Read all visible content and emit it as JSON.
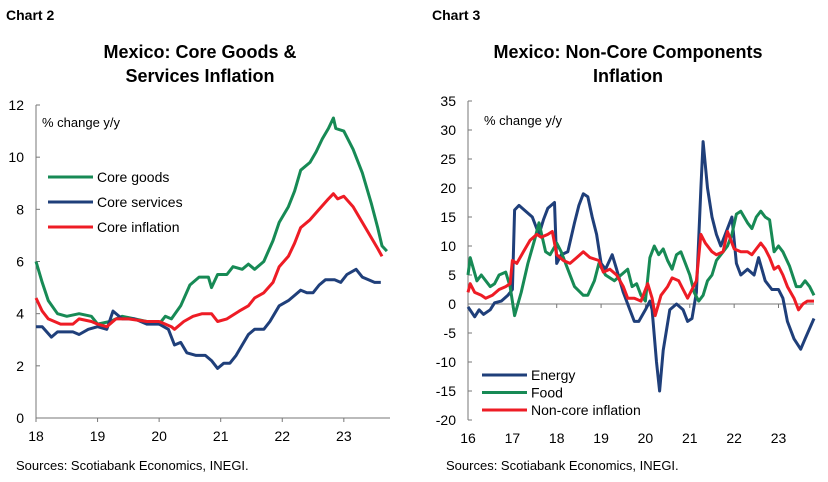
{
  "chart_data": [
    {
      "type": "line",
      "label": "Chart 2",
      "title": [
        "Mexico: Core Goods &",
        "Services Inflation"
      ],
      "unit_label": "% change y/y",
      "source": "Sources: Scotiabank Economics, INEGI.",
      "xlim": [
        18,
        23.75
      ],
      "ylim": [
        0,
        12
      ],
      "xticks": [
        18,
        19,
        20,
        21,
        22,
        23
      ],
      "yticks": [
        0,
        2,
        4,
        6,
        8,
        10,
        12
      ],
      "grid": false,
      "legend_position": "upper-left",
      "series": [
        {
          "name": "Core goods",
          "color": "#178a55",
          "x": [
            18.0,
            18.1,
            18.2,
            18.35,
            18.5,
            18.7,
            18.9,
            19.0,
            19.2,
            19.4,
            19.6,
            19.8,
            20.0,
            20.1,
            20.2,
            20.35,
            20.5,
            20.65,
            20.8,
            20.85,
            20.95,
            21.1,
            21.2,
            21.35,
            21.45,
            21.55,
            21.7,
            21.85,
            21.95,
            22.1,
            22.2,
            22.3,
            22.45,
            22.55,
            22.65,
            22.75,
            22.83,
            22.87,
            23.0,
            23.15,
            23.3,
            23.45,
            23.55,
            23.62,
            23.7
          ],
          "y": [
            6.0,
            5.2,
            4.5,
            4.0,
            3.9,
            4.0,
            3.9,
            3.6,
            3.7,
            3.9,
            3.8,
            3.7,
            3.6,
            3.9,
            3.8,
            4.3,
            5.1,
            5.4,
            5.4,
            5.0,
            5.5,
            5.5,
            5.8,
            5.7,
            5.9,
            5.7,
            6.0,
            6.8,
            7.5,
            8.1,
            8.7,
            9.5,
            9.8,
            10.2,
            10.7,
            11.1,
            11.5,
            11.1,
            11.0,
            10.3,
            9.4,
            8.2,
            7.3,
            6.6,
            6.4
          ]
        },
        {
          "name": "Core services",
          "color": "#1f3f7a",
          "x": [
            18.0,
            18.1,
            18.25,
            18.35,
            18.6,
            18.7,
            18.85,
            19.0,
            19.15,
            19.25,
            19.4,
            19.6,
            19.8,
            20.0,
            20.15,
            20.25,
            20.35,
            20.45,
            20.6,
            20.75,
            20.85,
            20.95,
            21.05,
            21.15,
            21.25,
            21.35,
            21.45,
            21.55,
            21.7,
            21.8,
            21.95,
            22.1,
            22.2,
            22.3,
            22.4,
            22.5,
            22.6,
            22.7,
            22.85,
            22.95,
            23.05,
            23.2,
            23.3,
            23.4,
            23.5,
            23.6
          ],
          "y": [
            3.5,
            3.5,
            3.1,
            3.3,
            3.3,
            3.2,
            3.4,
            3.5,
            3.4,
            4.1,
            3.8,
            3.8,
            3.6,
            3.6,
            3.4,
            2.8,
            2.9,
            2.5,
            2.4,
            2.4,
            2.2,
            1.9,
            2.1,
            2.1,
            2.4,
            2.8,
            3.2,
            3.4,
            3.4,
            3.7,
            4.3,
            4.5,
            4.7,
            4.9,
            4.8,
            4.8,
            5.1,
            5.3,
            5.3,
            5.2,
            5.5,
            5.7,
            5.4,
            5.3,
            5.2,
            5.2
          ]
        },
        {
          "name": "Core inflation",
          "color": "#ee1c25",
          "x": [
            18.0,
            18.1,
            18.2,
            18.4,
            18.6,
            18.7,
            18.9,
            19.0,
            19.15,
            19.3,
            19.5,
            19.8,
            20.0,
            20.1,
            20.2,
            20.25,
            20.4,
            20.55,
            20.7,
            20.85,
            20.95,
            21.1,
            21.3,
            21.45,
            21.55,
            21.7,
            21.85,
            21.95,
            22.1,
            22.2,
            22.3,
            22.45,
            22.6,
            22.75,
            22.83,
            22.9,
            23.0,
            23.15,
            23.3,
            23.45,
            23.55,
            23.62
          ],
          "y": [
            4.6,
            4.1,
            3.8,
            3.6,
            3.6,
            3.8,
            3.7,
            3.6,
            3.5,
            3.8,
            3.8,
            3.7,
            3.7,
            3.6,
            3.5,
            3.4,
            3.7,
            3.9,
            4.0,
            4.0,
            3.7,
            3.8,
            4.1,
            4.3,
            4.6,
            4.8,
            5.2,
            5.8,
            6.2,
            6.7,
            7.3,
            7.6,
            8.0,
            8.4,
            8.6,
            8.4,
            8.5,
            8.1,
            7.5,
            6.9,
            6.5,
            6.2
          ]
        }
      ]
    },
    {
      "type": "line",
      "label": "Chart 3",
      "title": [
        "Mexico: Non-Core Components",
        "Inflation"
      ],
      "unit_label": "% change y/y",
      "source": "Sources: Scotiabank Economics, INEGI.",
      "xlim": [
        16,
        23.8
      ],
      "ylim": [
        -20,
        35
      ],
      "xticks": [
        16,
        17,
        18,
        19,
        20,
        21,
        22,
        23
      ],
      "yticks": [
        -20,
        -15,
        -10,
        -5,
        0,
        5,
        10,
        15,
        20,
        25,
        30,
        35
      ],
      "grid": false,
      "legend_position": "lower-left",
      "series": [
        {
          "name": "Energy",
          "color": "#1f3f7a",
          "x": [
            16.0,
            16.15,
            16.25,
            16.35,
            16.5,
            16.6,
            16.75,
            16.9,
            17.0,
            17.05,
            17.15,
            17.3,
            17.45,
            17.6,
            17.7,
            17.8,
            17.95,
            18.0,
            18.1,
            18.25,
            18.4,
            18.5,
            18.6,
            18.7,
            18.8,
            18.9,
            19.0,
            19.1,
            19.25,
            19.35,
            19.5,
            19.65,
            19.75,
            19.85,
            20.0,
            20.1,
            20.15,
            20.25,
            20.32,
            20.4,
            20.55,
            20.7,
            20.85,
            20.95,
            21.05,
            21.15,
            21.25,
            21.3,
            21.4,
            21.5,
            21.6,
            21.7,
            21.85,
            21.95,
            22.05,
            22.15,
            22.3,
            22.45,
            22.55,
            22.7,
            22.85,
            23.0,
            23.1,
            23.2,
            23.35,
            23.5,
            23.6,
            23.8
          ],
          "y": [
            -0.5,
            -2.2,
            -1.0,
            -1.8,
            -1.0,
            0.2,
            0.5,
            1.5,
            2.5,
            16.2,
            17,
            16,
            15,
            12,
            14.5,
            16.5,
            17.5,
            7,
            8.5,
            9,
            14,
            17,
            19,
            18.5,
            15,
            12,
            7,
            6,
            8.5,
            6,
            2,
            -1,
            -3,
            -3,
            -1,
            0.5,
            -1,
            -10,
            -15,
            -8,
            -1,
            0,
            -1,
            -3,
            -2.5,
            2,
            20,
            28,
            20,
            15,
            12,
            10,
            13,
            15,
            7,
            5,
            6,
            5,
            8,
            4,
            2.5,
            2.5,
            1,
            -3,
            -6,
            -7.8,
            -6,
            -2.5
          ]
        },
        {
          "name": "Food",
          "color": "#178a55",
          "x": [
            16.0,
            16.05,
            16.2,
            16.3,
            16.5,
            16.6,
            16.7,
            16.85,
            16.95,
            17.05,
            17.2,
            17.35,
            17.5,
            17.6,
            17.75,
            17.85,
            18.0,
            18.1,
            18.25,
            18.4,
            18.6,
            18.7,
            18.85,
            18.95,
            19.1,
            19.3,
            19.45,
            19.6,
            19.7,
            19.8,
            19.9,
            20.0,
            20.1,
            20.2,
            20.3,
            20.4,
            20.5,
            20.6,
            20.7,
            20.8,
            20.9,
            21.0,
            21.1,
            21.2,
            21.3,
            21.4,
            21.5,
            21.6,
            21.75,
            21.85,
            21.95,
            22.05,
            22.15,
            22.3,
            22.4,
            22.5,
            22.6,
            22.7,
            22.8,
            22.9,
            23.0,
            23.1,
            23.25,
            23.4,
            23.5,
            23.6,
            23.7,
            23.8
          ],
          "y": [
            5,
            8,
            4,
            5,
            3,
            3.5,
            5,
            5.5,
            3,
            -2,
            2,
            7,
            11,
            14,
            9,
            8.5,
            10.5,
            9,
            6,
            3,
            1.5,
            1.5,
            4,
            7,
            5,
            4,
            5,
            6,
            3,
            3.5,
            1.5,
            0.5,
            8,
            10,
            8.5,
            9.5,
            7.5,
            6,
            8.5,
            9,
            7,
            5,
            2,
            0.5,
            1.5,
            4,
            5,
            7.5,
            9,
            10,
            12,
            15.5,
            16,
            14,
            13,
            15,
            16,
            15,
            14.5,
            9,
            10,
            9,
            6.5,
            3,
            3,
            4,
            3,
            1.5
          ]
        },
        {
          "name": "Non-core inflation",
          "color": "#ee1c25",
          "x": [
            16.0,
            16.05,
            16.15,
            16.3,
            16.4,
            16.55,
            16.7,
            16.85,
            16.95,
            17.0,
            17.1,
            17.25,
            17.4,
            17.55,
            17.65,
            17.8,
            17.9,
            18.0,
            18.15,
            18.3,
            18.45,
            18.6,
            18.75,
            18.95,
            19.05,
            19.2,
            19.35,
            19.5,
            19.6,
            19.75,
            19.9,
            20.05,
            20.15,
            20.22,
            20.35,
            20.5,
            20.6,
            20.75,
            20.85,
            20.95,
            21.05,
            21.15,
            21.25,
            21.35,
            21.5,
            21.6,
            21.75,
            21.85,
            22.0,
            22.15,
            22.3,
            22.4,
            22.5,
            22.6,
            22.7,
            22.8,
            22.9,
            23.0,
            23.1,
            23.2,
            23.35,
            23.45,
            23.55,
            23.65,
            23.8
          ],
          "y": [
            2,
            3.5,
            2,
            1.5,
            1,
            1.5,
            2.5,
            3,
            3.5,
            7.5,
            7,
            9,
            11,
            12,
            11.5,
            12,
            12.5,
            8.5,
            7.5,
            7,
            8,
            9,
            8,
            7.5,
            5.5,
            6,
            5,
            3,
            1,
            1,
            0.5,
            3.5,
            1,
            -2,
            1.5,
            3,
            4.5,
            4,
            2.5,
            1,
            2.5,
            4,
            12,
            10.5,
            9,
            8.5,
            9,
            12.5,
            9.5,
            9,
            9,
            8.5,
            9.5,
            10.5,
            9.5,
            8,
            6,
            6.5,
            5,
            3,
            1,
            -1,
            0,
            0.5,
            0.5
          ]
        }
      ]
    }
  ]
}
